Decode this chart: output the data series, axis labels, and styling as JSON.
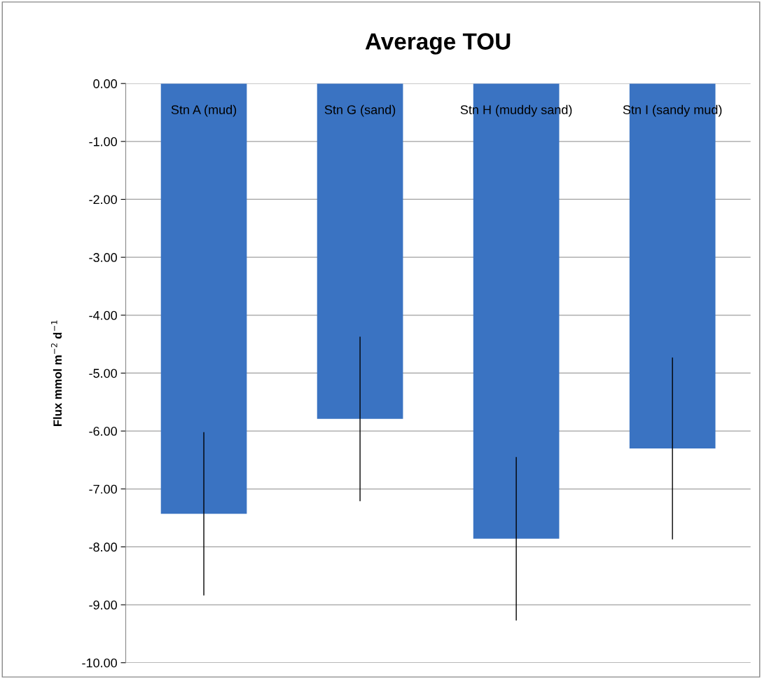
{
  "chart_data": {
    "type": "bar",
    "title": "Average TOU",
    "ylabel": "Flux mmol m$^{−2}$ d$^{−1}$",
    "categories": [
      "Stn A (mud)",
      "Stn G (sand)",
      "Stn H (muddy sand)",
      "Stn I (sandy mud)"
    ],
    "values": [
      -7.43,
      -5.79,
      -7.86,
      -6.3
    ],
    "errors": [
      1.41,
      1.42,
      1.41,
      1.57
    ],
    "color": "#3a73c2",
    "ylim": [
      -10,
      0
    ],
    "yticks": [
      {
        "value": -10,
        "label": "-10.00"
      },
      {
        "value": -9,
        "label": "-9.00"
      },
      {
        "value": -8,
        "label": "-8.00"
      },
      {
        "value": -7,
        "label": "-7.00"
      },
      {
        "value": -6,
        "label": "-6.00"
      },
      {
        "value": -5,
        "label": "-5.00"
      },
      {
        "value": -4,
        "label": "-4.00"
      },
      {
        "value": -3,
        "label": "-3.00"
      },
      {
        "value": -2,
        "label": "-2.00"
      },
      {
        "value": -1,
        "label": "-1.00"
      },
      {
        "value": 0,
        "label": "0.00"
      }
    ],
    "grid": "y",
    "legend": false
  }
}
